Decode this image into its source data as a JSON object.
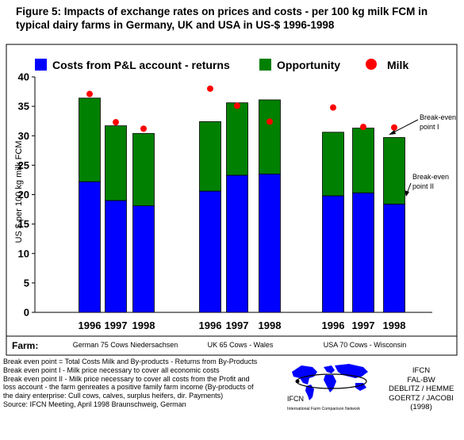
{
  "title": {
    "line1": "Figure 5:  Impacts of exchange rates on prices and costs - per 100 kg milk FCM in",
    "line2": "typical dairy farms in Germany, UK and USA in US-$ 1996-1998"
  },
  "chart_data": {
    "type": "bar",
    "stacked": true,
    "ylabel": "US $ per 100 kg milk FCM",
    "ylim": [
      0,
      40
    ],
    "yticks": [
      0,
      5,
      10,
      15,
      20,
      25,
      30,
      35,
      40
    ],
    "grid": false,
    "legend_position": "top",
    "categories": [
      "1996",
      "1997",
      "1998",
      "1996",
      "1997",
      "1998",
      "1996",
      "1997",
      "1998"
    ],
    "groups": [
      {
        "label": "German 75 Cows Niedersachsen",
        "categories": [
          "1996",
          "1997",
          "1998"
        ]
      },
      {
        "label": "UK 65 Cows - Wales",
        "categories": [
          "1996",
          "1997",
          "1998"
        ]
      },
      {
        "label": "USA 70 Cows - Wisconsin",
        "categories": [
          "1996",
          "1997",
          "1998"
        ]
      }
    ],
    "farm_label": "Farm:",
    "series": [
      {
        "name": "Costs from P&L account - returns",
        "color": "#0000ff",
        "kind": "bar",
        "values": [
          22.2,
          19.0,
          18.1,
          20.6,
          23.3,
          23.5,
          19.8,
          20.3,
          18.4
        ]
      },
      {
        "name": "Opportunity",
        "color": "#008000",
        "kind": "bar",
        "values": [
          14.2,
          12.7,
          12.3,
          11.8,
          12.3,
          12.6,
          10.8,
          11.0,
          11.3
        ]
      },
      {
        "name": "Milk",
        "color": "#ff0000",
        "kind": "point",
        "values": [
          37.1,
          32.3,
          31.2,
          38.0,
          35.1,
          32.4,
          34.8,
          31.5,
          31.4
        ]
      }
    ],
    "annotations": [
      {
        "text_line1": "Break-even",
        "text_line2": "point I"
      },
      {
        "text_line1": "Break-even",
        "text_line2": "point II"
      }
    ]
  },
  "footnotes": [
    "Break even point = Total Costs Milk and By-products - Returns from By-Products",
    "Break even point I - Milk price necessary to cover all economic costs",
    "Break even point II - Milk price necessary to cover all costs from the Profit and",
    "loss account - the farm genreates a positive family farm income (By-products of",
    "the dairy enterprise:  Cull cows, calves, surplus heifers, dir. Payments)",
    "Source:  IFCN Meeting, April 1998 Braunschweig, German"
  ],
  "logo": {
    "name": "IFCN",
    "subtitle": "International Farm Comparison Network",
    "color": "#0000ff"
  },
  "credits": [
    "IFCN",
    "FAL-BW",
    "DEBLITZ / HEMME",
    "GOERTZ / JACOBI",
    "(1998)"
  ]
}
